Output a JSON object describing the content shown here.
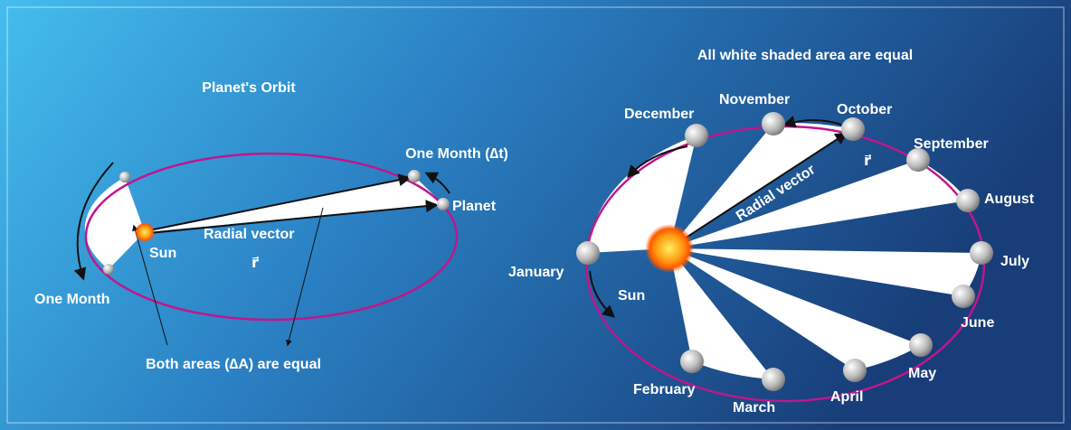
{
  "left": {
    "title": "Planet's Orbit",
    "one_month_dt": "One Month (∆t)",
    "planet": "Planet",
    "sun": "Sun",
    "radial_vector": "Radial vector",
    "r": "r⃗",
    "one_month": "One Month",
    "both_areas": "Both areas (∆A) are equal"
  },
  "right": {
    "title": "All white shaded area are equal",
    "months": [
      "January",
      "February",
      "March",
      "April",
      "May",
      "June",
      "July",
      "August",
      "September",
      "October",
      "November",
      "December"
    ],
    "sun": "Sun",
    "radial_vector": "Radial vector",
    "r": "r⃗"
  }
}
